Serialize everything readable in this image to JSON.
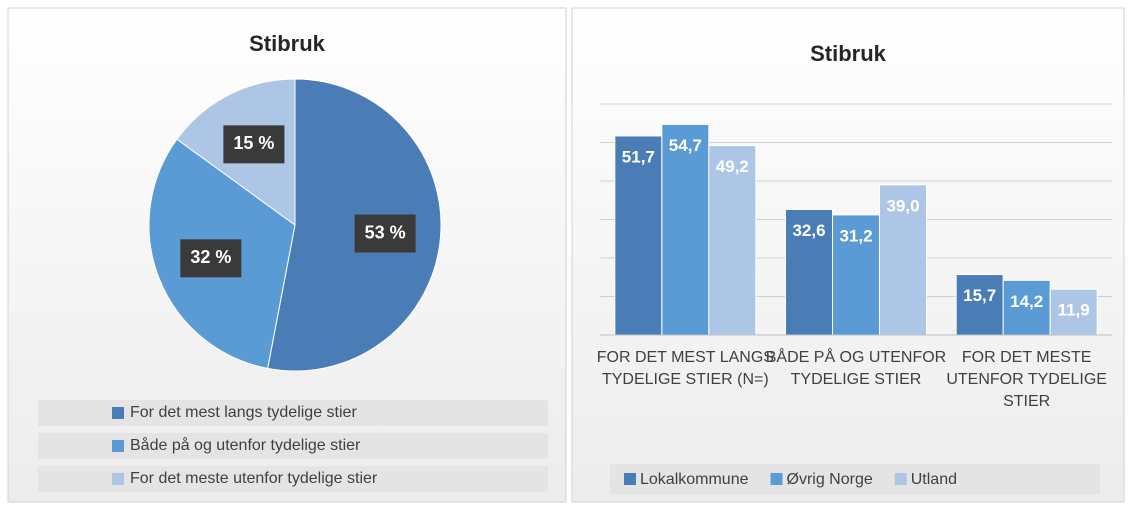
{
  "chart_data": [
    {
      "type": "pie",
      "title": "Stibruk",
      "categories": [
        "For det mest langs tydelige stier",
        "Både på og utenfor tydelige stier",
        "For det meste utenfor tydelige stier"
      ],
      "values": [
        53,
        32,
        15
      ],
      "value_labels": [
        "53 %",
        "32 %",
        "15 %"
      ],
      "colors": [
        "#4a7db5",
        "#5b9bd5",
        "#aec6e6"
      ],
      "legend": "bottom"
    },
    {
      "type": "bar",
      "title": "Stibruk",
      "categories": [
        "FOR DET MEST LANGS TYDELIGE STIER (N=)",
        "BÅDE PÅ OG UTENFOR TYDELIGE STIER",
        "FOR DET MESTE UTENFOR TYDELIGE STIER"
      ],
      "series": [
        {
          "name": "Lokalkommune",
          "color": "#4a7db5",
          "values": [
            51.7,
            32.6,
            15.7
          ],
          "value_labels": [
            "51,7",
            "32,6",
            "15,7"
          ]
        },
        {
          "name": "Øvrig Norge",
          "color": "#5b9bd5",
          "values": [
            54.7,
            31.2,
            14.2
          ],
          "value_labels": [
            "54,7",
            "31,2",
            "14,2"
          ]
        },
        {
          "name": "Utland",
          "color": "#aec6e6",
          "values": [
            49.2,
            39.0,
            11.9
          ],
          "value_labels": [
            "49,2",
            "39,0",
            "11,9"
          ]
        }
      ],
      "ylim": [
        0,
        60
      ],
      "yticks": [
        0,
        10,
        20,
        30,
        40,
        50,
        60
      ],
      "grid": true,
      "legend": "bottom"
    }
  ]
}
